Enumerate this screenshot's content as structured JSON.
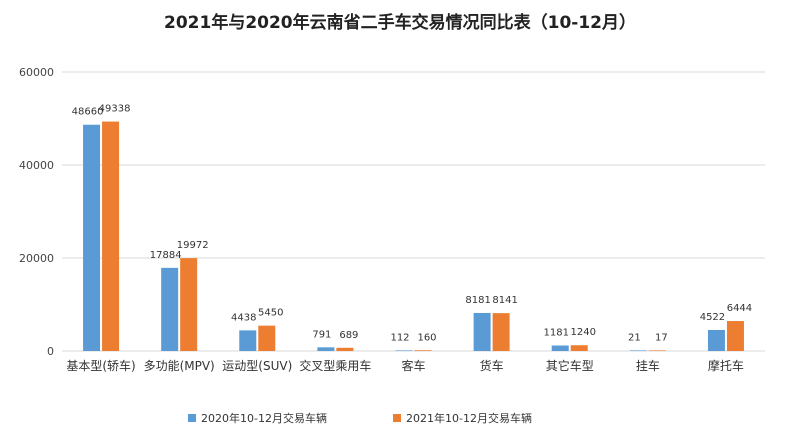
{
  "chart_data": {
    "type": "bar",
    "title": "2021年与2020年云南省二手车交易情况同比表（10-12月）",
    "categories": [
      "基本型(轿车)",
      "多功能(MPV)",
      "运动型(SUV)",
      "交叉型乘用车",
      "客车",
      "货车",
      "其它车型",
      "挂车",
      "摩托车"
    ],
    "series": [
      {
        "name": "2020年10-12月交易车辆",
        "color": "#5b9bd5",
        "values": [
          48660,
          17884,
          4438,
          791,
          112,
          8181,
          1181,
          21,
          4522
        ]
      },
      {
        "name": "2021年10-12月交易车辆",
        "color": "#ed7d31",
        "values": [
          49338,
          19972,
          5450,
          689,
          160,
          8141,
          1240,
          17,
          6444
        ]
      }
    ],
    "y_ticks": [
      "0",
      "20000",
      "40000",
      "60000"
    ],
    "ylim": [
      0,
      60000
    ],
    "grid": true,
    "legend_position": "bottom"
  }
}
